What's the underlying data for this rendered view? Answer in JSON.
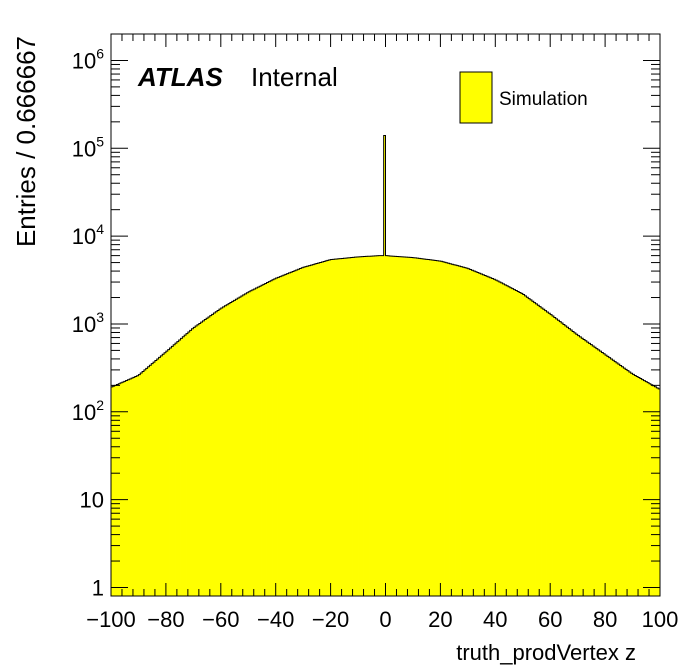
{
  "chart_data": {
    "type": "histogram",
    "xlabel": "truth_prodVertex z",
    "ylabel": "Entries / 0.666667",
    "xlim": [
      -100,
      100
    ],
    "ylim": [
      0.8,
      2000000
    ],
    "log_y": true,
    "bin_width": 0.666667,
    "x_ticks": [
      -100,
      -80,
      -60,
      -40,
      -20,
      0,
      20,
      40,
      60,
      80,
      100
    ],
    "x_tick_labels": [
      "−100",
      "−80",
      "−60",
      "−40",
      "−20",
      "0",
      "20",
      "40",
      "60",
      "80",
      "100"
    ],
    "y_ticks": [
      {
        "value": 1,
        "base": "1",
        "exp": ""
      },
      {
        "value": 10,
        "base": "10",
        "exp": ""
      },
      {
        "value": 100,
        "base": "10",
        "exp": "2"
      },
      {
        "value": 1000,
        "base": "10",
        "exp": "3"
      },
      {
        "value": 10000,
        "base": "10",
        "exp": "4"
      },
      {
        "value": 100000,
        "base": "10",
        "exp": "5"
      },
      {
        "value": 1000000,
        "base": "10",
        "exp": "6"
      }
    ],
    "fill_color": "#ffff00",
    "line_color": "#000000",
    "series": [
      {
        "name": "Simulation",
        "profile_x": [
          -100,
          -90,
          -80,
          -70,
          -60,
          -50,
          -40,
          -30,
          -20,
          -10,
          -2,
          0,
          10,
          20,
          30,
          40,
          50,
          60,
          70,
          80,
          90,
          100
        ],
        "profile_y": [
          190,
          260,
          480,
          900,
          1500,
          2300,
          3300,
          4400,
          5400,
          5800,
          6000,
          6000,
          5700,
          5200,
          4300,
          3200,
          2200,
          1300,
          750,
          450,
          270,
          180
        ],
        "spike": {
          "x": 0,
          "y": 140000
        }
      }
    ]
  },
  "atlas_label": {
    "bold": "ATLAS",
    "normal": "Internal"
  },
  "legend": {
    "entry": "Simulation"
  }
}
